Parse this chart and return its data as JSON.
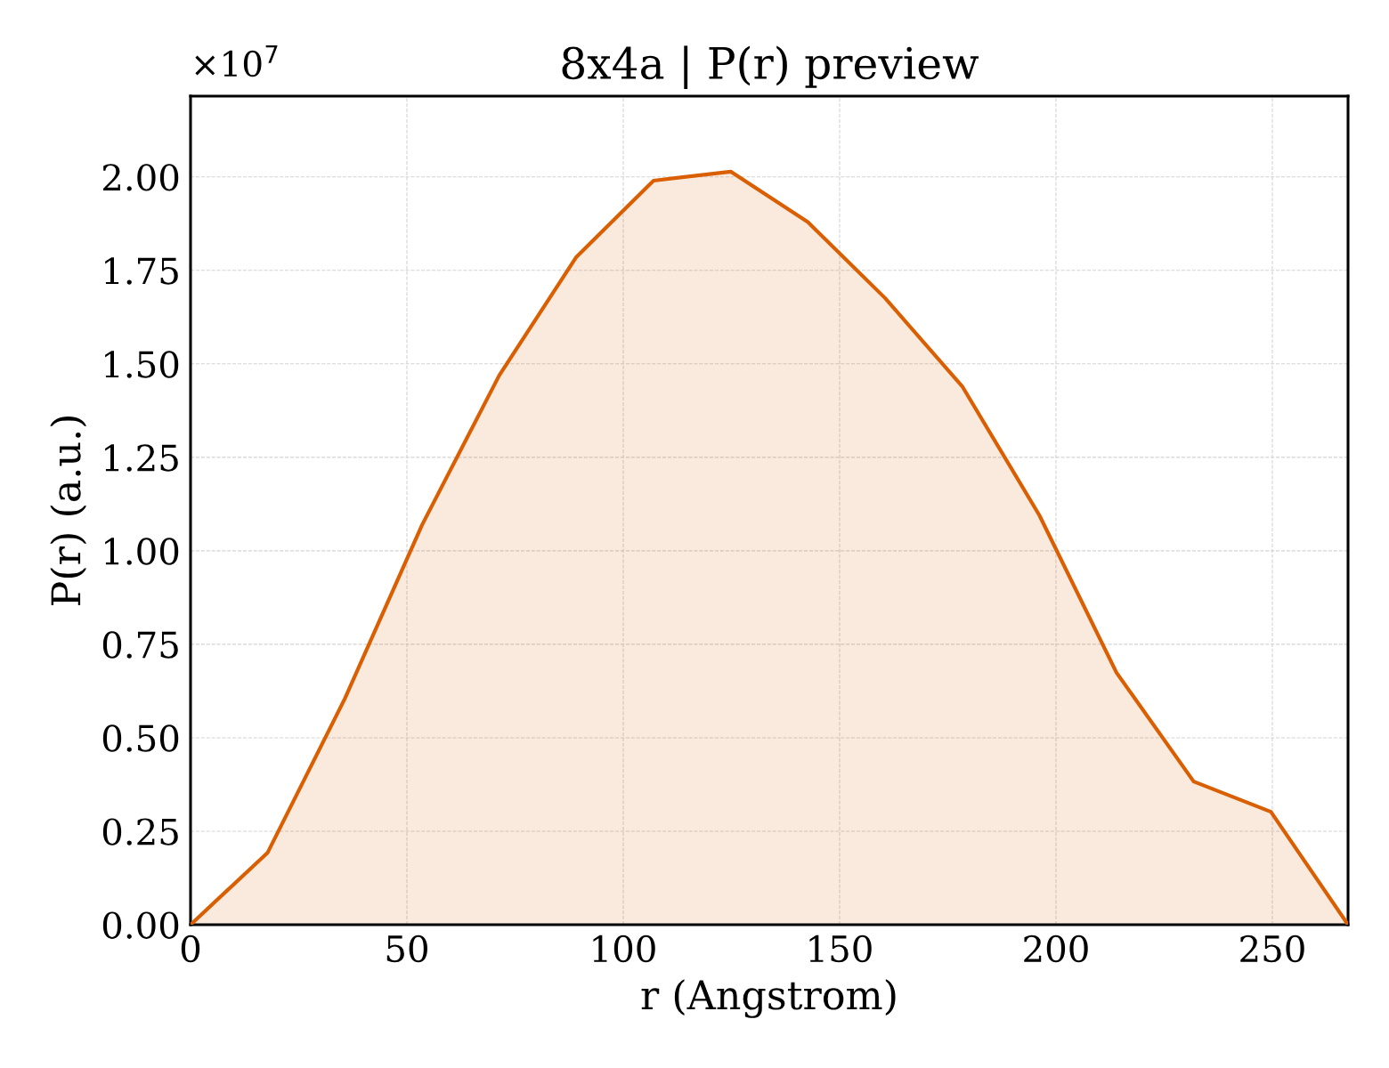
{
  "chart_data": {
    "type": "area",
    "title": "8x4a | P(r) preview",
    "xlabel": "r (Angstrom)",
    "ylabel": "P(r) (a.u.)",
    "x": [
      0,
      17.83,
      35.67,
      53.5,
      71.33,
      89.17,
      107.0,
      124.83,
      142.67,
      160.5,
      178.33,
      196.17,
      214.0,
      231.83,
      249.67,
      267.5
    ],
    "series": [
      {
        "color": "#d95f02",
        "values": [
          0,
          0.193,
          0.605,
          1.069,
          1.469,
          1.786,
          1.99,
          2.014,
          1.879,
          1.676,
          1.44,
          1.095,
          0.674,
          0.383,
          0.302,
          0
        ]
      }
    ],
    "xlim": [
      0,
      267.5
    ],
    "ylim": [
      0,
      2.216
    ],
    "xticks": [
      0,
      50,
      100,
      150,
      200,
      250
    ],
    "yticks": [
      {
        "value": 0,
        "label": "0.00"
      },
      0.25,
      {
        "value": 0.5,
        "label": "0.50"
      },
      0.75,
      {
        "value": 1,
        "label": "1.00"
      },
      1.25,
      {
        "value": 1.5,
        "label": "1.50"
      },
      1.75,
      {
        "value": 2,
        "label": "2.00"
      }
    ],
    "annotations": [
      "×10$^{7}$"
    ],
    "grid": true,
    "line_style": "solid"
  }
}
